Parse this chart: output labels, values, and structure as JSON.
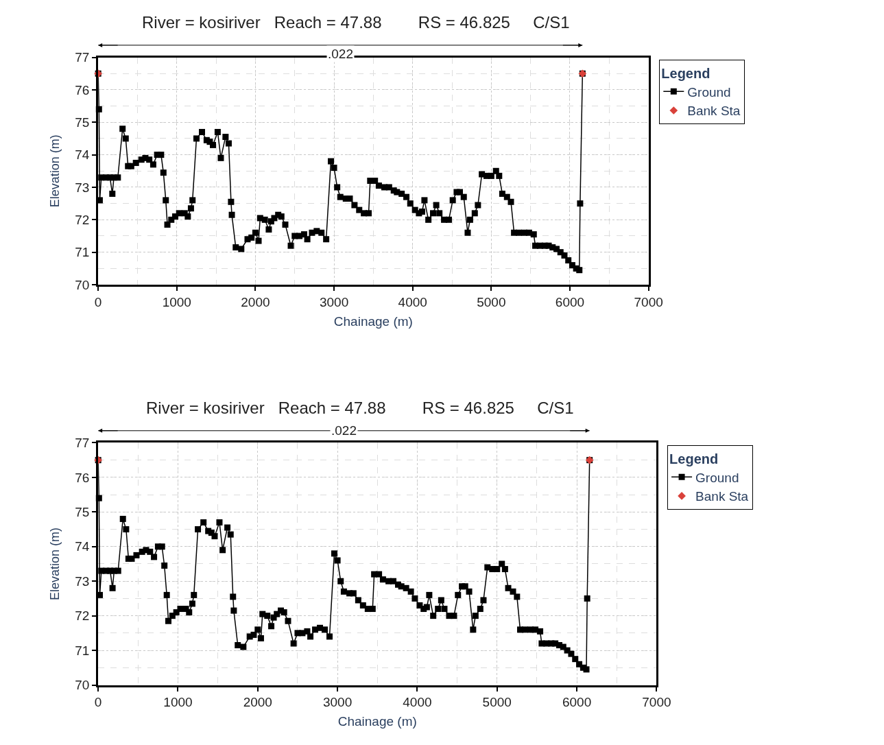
{
  "chart_data": [
    {
      "type": "line",
      "title": "River = kosiriver   Reach = 47.88        RS = 46.825     C/S1",
      "xlabel": "Chainage (m)",
      "ylabel": "Elevation (m)",
      "legend_title": "Legend",
      "legend": "top right",
      "grid": true,
      "annotations": [
        ".022"
      ],
      "xlim": [
        0,
        7000
      ],
      "ylim": [
        70,
        77
      ],
      "xticks": [
        0,
        1000,
        2000,
        3000,
        4000,
        5000,
        6000,
        7000
      ],
      "yticks": [
        70,
        71,
        72,
        73,
        74,
        75,
        76,
        77
      ],
      "series": [
        {
          "name": "Ground",
          "color": "#000000",
          "marker": "square",
          "x": [
            0,
            10,
            20,
            40,
            100,
            150,
            180,
            200,
            250,
            310,
            350,
            380,
            420,
            480,
            550,
            600,
            650,
            700,
            750,
            800,
            830,
            860,
            880,
            930,
            980,
            1030,
            1100,
            1140,
            1180,
            1200,
            1250,
            1320,
            1380,
            1420,
            1460,
            1520,
            1560,
            1620,
            1660,
            1690,
            1700,
            1750,
            1820,
            1900,
            1950,
            2000,
            2040,
            2060,
            2120,
            2170,
            2200,
            2240,
            2290,
            2330,
            2380,
            2450,
            2500,
            2560,
            2620,
            2660,
            2720,
            2780,
            2840,
            2900,
            2960,
            3000,
            3040,
            3080,
            3150,
            3200,
            3260,
            3320,
            3380,
            3440,
            3460,
            3520,
            3570,
            3640,
            3700,
            3760,
            3800,
            3860,
            3920,
            3970,
            4030,
            4080,
            4120,
            4150,
            4200,
            4260,
            4300,
            4340,
            4400,
            4460,
            4510,
            4560,
            4600,
            4650,
            4700,
            4730,
            4790,
            4830,
            4880,
            4940,
            5000,
            5060,
            5100,
            5140,
            5200,
            5250,
            5290,
            5350,
            5420,
            5480,
            5540,
            5560,
            5620,
            5680,
            5730,
            5780,
            5830,
            5880,
            5930,
            5980,
            6030,
            6080,
            6120,
            6130,
            6160
          ],
          "values": [
            76.5,
            75.4,
            72.6,
            73.3,
            73.3,
            73.3,
            72.8,
            73.3,
            73.3,
            74.8,
            74.5,
            73.65,
            73.65,
            73.75,
            73.85,
            73.9,
            73.85,
            73.7,
            74.0,
            74.0,
            73.45,
            72.6,
            71.85,
            72.0,
            72.1,
            72.2,
            72.2,
            72.1,
            72.35,
            72.6,
            74.5,
            74.7,
            74.45,
            74.4,
            74.3,
            74.7,
            73.9,
            74.55,
            74.35,
            72.55,
            72.15,
            71.15,
            71.1,
            71.4,
            71.45,
            71.6,
            71.35,
            72.05,
            72.0,
            71.7,
            71.95,
            72.05,
            72.15,
            72.1,
            71.85,
            71.2,
            71.5,
            71.5,
            71.55,
            71.4,
            71.6,
            71.65,
            71.6,
            71.4,
            73.8,
            73.6,
            73.0,
            72.7,
            72.65,
            72.65,
            72.45,
            72.3,
            72.2,
            72.2,
            73.2,
            73.2,
            73.05,
            73.0,
            73.0,
            72.9,
            72.85,
            72.8,
            72.7,
            72.5,
            72.3,
            72.2,
            72.25,
            72.6,
            72.0,
            72.2,
            72.45,
            72.2,
            72.0,
            72.0,
            72.6,
            72.85,
            72.85,
            72.7,
            71.6,
            72.0,
            72.2,
            72.45,
            73.4,
            73.35,
            73.35,
            73.5,
            73.35,
            72.8,
            72.7,
            72.55,
            71.6,
            71.6,
            71.6,
            71.6,
            71.55,
            71.2,
            71.2,
            71.2,
            71.2,
            71.15,
            71.1,
            71.0,
            70.9,
            70.75,
            70.6,
            70.5,
            70.45,
            72.5,
            76.5
          ]
        },
        {
          "name": "Bank Sta",
          "color": "#d9413a",
          "marker": "diamond",
          "type": "scatter",
          "x": [
            0,
            6160
          ],
          "values": [
            76.5,
            76.5
          ]
        }
      ]
    },
    {
      "type": "line",
      "title": "River = kosiriver   Reach = 47.88        RS = 46.825     C/S1",
      "xlabel": "Chainage (m)",
      "ylabel": "Elevation (m)",
      "legend_title": "Legend",
      "legend": "top right",
      "grid": true,
      "annotations": [
        ".022"
      ],
      "xlim": [
        0,
        7000
      ],
      "ylim": [
        70,
        77
      ],
      "xticks": [
        0,
        1000,
        2000,
        3000,
        4000,
        5000,
        6000,
        7000
      ],
      "yticks": [
        70,
        71,
        72,
        73,
        74,
        75,
        76,
        77
      ],
      "series": [
        {
          "name": "Ground",
          "color": "#000000",
          "marker": "square",
          "x": [
            0,
            10,
            20,
            40,
            100,
            150,
            180,
            200,
            250,
            310,
            350,
            380,
            420,
            480,
            550,
            600,
            650,
            700,
            750,
            800,
            830,
            860,
            880,
            930,
            980,
            1030,
            1100,
            1140,
            1180,
            1200,
            1250,
            1320,
            1380,
            1420,
            1460,
            1520,
            1560,
            1620,
            1660,
            1690,
            1700,
            1750,
            1820,
            1900,
            1950,
            2000,
            2040,
            2060,
            2120,
            2170,
            2200,
            2240,
            2290,
            2330,
            2380,
            2450,
            2500,
            2560,
            2620,
            2660,
            2720,
            2780,
            2840,
            2900,
            2960,
            3000,
            3040,
            3080,
            3150,
            3200,
            3260,
            3320,
            3380,
            3440,
            3460,
            3520,
            3570,
            3640,
            3700,
            3760,
            3800,
            3860,
            3920,
            3970,
            4030,
            4080,
            4120,
            4150,
            4200,
            4260,
            4300,
            4340,
            4400,
            4460,
            4510,
            4560,
            4600,
            4650,
            4700,
            4730,
            4790,
            4830,
            4880,
            4940,
            5000,
            5060,
            5100,
            5140,
            5200,
            5250,
            5290,
            5350,
            5420,
            5480,
            5540,
            5560,
            5620,
            5680,
            5730,
            5780,
            5830,
            5880,
            5930,
            5980,
            6030,
            6080,
            6120,
            6130,
            6160
          ],
          "values": [
            76.5,
            75.4,
            72.6,
            73.3,
            73.3,
            73.3,
            72.8,
            73.3,
            73.3,
            74.8,
            74.5,
            73.65,
            73.65,
            73.75,
            73.85,
            73.9,
            73.85,
            73.7,
            74.0,
            74.0,
            73.45,
            72.6,
            71.85,
            72.0,
            72.1,
            72.2,
            72.2,
            72.1,
            72.35,
            72.6,
            74.5,
            74.7,
            74.45,
            74.4,
            74.3,
            74.7,
            73.9,
            74.55,
            74.35,
            72.55,
            72.15,
            71.15,
            71.1,
            71.4,
            71.45,
            71.6,
            71.35,
            72.05,
            72.0,
            71.7,
            71.95,
            72.05,
            72.15,
            72.1,
            71.85,
            71.2,
            71.5,
            71.5,
            71.55,
            71.4,
            71.6,
            71.65,
            71.6,
            71.4,
            73.8,
            73.6,
            73.0,
            72.7,
            72.65,
            72.65,
            72.45,
            72.3,
            72.2,
            72.2,
            73.2,
            73.2,
            73.05,
            73.0,
            73.0,
            72.9,
            72.85,
            72.8,
            72.7,
            72.5,
            72.3,
            72.2,
            72.25,
            72.6,
            72.0,
            72.2,
            72.45,
            72.2,
            72.0,
            72.0,
            72.6,
            72.85,
            72.85,
            72.7,
            71.6,
            72.0,
            72.2,
            72.45,
            73.4,
            73.35,
            73.35,
            73.5,
            73.35,
            72.8,
            72.7,
            72.55,
            71.6,
            71.6,
            71.6,
            71.6,
            71.55,
            71.2,
            71.2,
            71.2,
            71.2,
            71.15,
            71.1,
            71.0,
            70.9,
            70.75,
            70.6,
            70.5,
            70.45,
            72.5,
            76.5
          ]
        },
        {
          "name": "Bank Sta",
          "color": "#d9413a",
          "marker": "diamond",
          "type": "scatter",
          "x": [
            0,
            6160
          ],
          "values": [
            76.5,
            76.5
          ]
        }
      ]
    }
  ]
}
